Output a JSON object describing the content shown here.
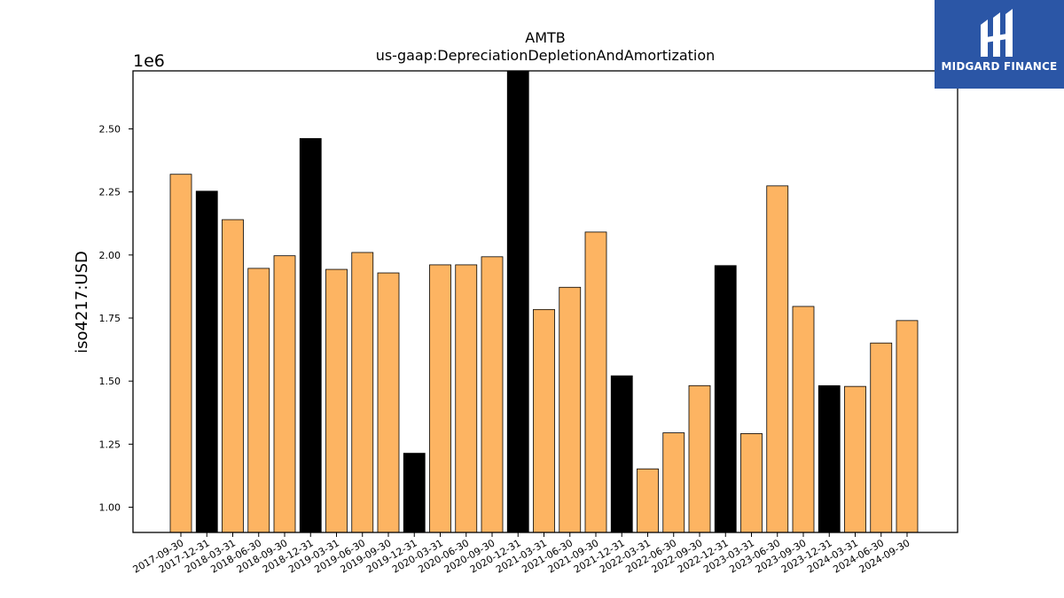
{
  "chart_data": {
    "type": "bar",
    "title": "AMTB",
    "subtitle": "us-gaap:DepreciationDepletionAndAmortization",
    "ylabel": "iso4217:USD",
    "xlabel": "",
    "y_multiplier_label": "1e6",
    "ylim": [
      900000,
      2730000
    ],
    "yticks": [
      1000000,
      1250000,
      1500000,
      1750000,
      2000000,
      2250000,
      2500000
    ],
    "ytick_labels": [
      "1.00",
      "1.25",
      "1.50",
      "1.75",
      "2.00",
      "2.25",
      "2.50"
    ],
    "categories": [
      "2017-09-30",
      "2017-12-31",
      "2018-03-31",
      "2018-06-30",
      "2018-09-30",
      "2018-12-31",
      "2019-03-31",
      "2019-06-30",
      "2019-09-30",
      "2019-12-31",
      "2020-03-31",
      "2020-06-30",
      "2020-09-30",
      "2020-12-31",
      "2021-03-31",
      "2021-06-30",
      "2021-09-30",
      "2021-12-31",
      "2022-03-31",
      "2022-06-30",
      "2022-09-30",
      "2022-12-31",
      "2023-03-31",
      "2023-06-30",
      "2023-09-30",
      "2023-12-31",
      "2024-03-31",
      "2024-06-30",
      "2024-09-30"
    ],
    "values": [
      2320000,
      2253000,
      2140000,
      1947000,
      1997000,
      2462000,
      1943000,
      2010000,
      1929000,
      1214000,
      1961000,
      1961000,
      1993000,
      2730000,
      1784000,
      1872000,
      2091000,
      1521000,
      1152000,
      1295000,
      1482000,
      1958000,
      1292000,
      2274000,
      1796000,
      1482000,
      1479000,
      1651000,
      1740000
    ],
    "bar_kinds": [
      "q",
      "a",
      "q",
      "q",
      "q",
      "a",
      "q",
      "q",
      "q",
      "a",
      "q",
      "q",
      "q",
      "a",
      "q",
      "q",
      "q",
      "a",
      "q",
      "q",
      "q",
      "a",
      "q",
      "q",
      "q",
      "a",
      "q",
      "q",
      "q"
    ],
    "colors": {
      "quarterly": "#fdb462",
      "annual": "#000000",
      "edge": "#000000"
    }
  },
  "logo": {
    "text": "MIDGARD FINANCE",
    "bg": "#2b56a6"
  }
}
